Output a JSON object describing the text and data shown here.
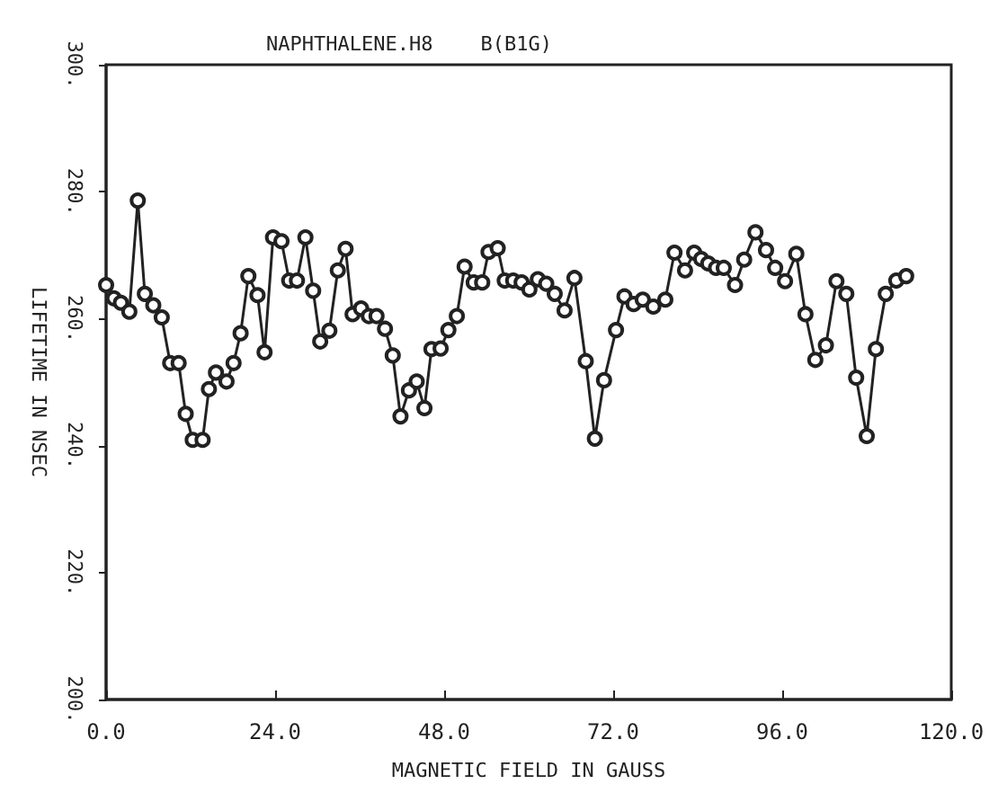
{
  "chart_data": {
    "type": "line",
    "title": "NAPHTHALENE.H8    B(B1G)",
    "xlabel": "MAGNETIC FIELD IN GAUSS",
    "ylabel": "LIFETIME IN NSEC",
    "xlim": [
      0,
      120
    ],
    "xticks": [
      {
        "value": 0,
        "label": "0.0"
      },
      {
        "value": 24,
        "label": "24.0"
      },
      {
        "value": 48,
        "label": "48.0"
      },
      {
        "value": 72,
        "label": "72.0"
      },
      {
        "value": 96,
        "label": "96.0"
      },
      {
        "value": 120,
        "label": "120.0"
      }
    ],
    "ylim": [
      200,
      300
    ],
    "yticks": [
      {
        "value": 200,
        "label": "200."
      },
      {
        "value": 220,
        "label": "220."
      },
      {
        "value": 240,
        "label": "240."
      },
      {
        "value": 260,
        "label": "260."
      },
      {
        "value": 280,
        "label": "280."
      },
      {
        "value": 300,
        "label": "300."
      }
    ],
    "grid": false,
    "marker": "circle",
    "line_style": "solid",
    "series": [
      {
        "color": "#222222",
        "x": [
          0,
          1.1,
          2.1,
          3.3,
          4.5,
          5.5,
          6.7,
          7.9,
          9.1,
          10.3,
          11.3,
          12.3,
          13.7,
          14.6,
          15.6,
          17.1,
          18.1,
          19.1,
          20.2,
          21.5,
          22.5,
          23.7,
          24.9,
          26.0,
          27.1,
          28.3,
          29.4,
          30.4,
          31.7,
          32.9,
          34.0,
          35.0,
          36.2,
          37.3,
          38.4,
          39.6,
          40.7,
          41.8,
          43.0,
          44.1,
          45.2,
          46.2,
          47.5,
          48.6,
          49.8,
          50.9,
          52.2,
          53.4,
          54.3,
          55.6,
          56.6,
          57.8,
          59.0,
          60.1,
          61.3,
          62.5,
          63.7,
          65.1,
          66.5,
          68.1,
          69.4,
          70.7,
          72.4,
          73.6,
          74.9,
          76.2,
          77.7,
          79.4,
          80.7,
          82.2,
          83.5,
          84.5,
          85.5,
          86.6,
          87.7,
          89.3,
          90.6,
          92.2,
          93.7,
          95.0,
          96.4,
          98.0,
          99.3,
          100.7,
          102.2,
          103.7,
          105.1,
          106.5,
          108.0,
          109.3,
          110.7,
          112.2,
          113.6
        ],
        "values": [
          265.3,
          263.2,
          262.5,
          261.1,
          278.6,
          263.9,
          262.1,
          260.2,
          253.0,
          253.0,
          245.0,
          240.9,
          240.9,
          248.9,
          251.5,
          250.1,
          253.0,
          257.7,
          266.7,
          263.7,
          254.7,
          272.8,
          272.2,
          266.0,
          266.0,
          272.8,
          264.4,
          256.4,
          258.1,
          267.6,
          271.0,
          260.7,
          261.6,
          260.4,
          260.4,
          258.4,
          254.2,
          244.6,
          248.7,
          250.1,
          245.9,
          255.2,
          255.3,
          258.2,
          260.4,
          268.2,
          265.7,
          265.7,
          270.5,
          271.1,
          266.0,
          266.0,
          265.7,
          264.6,
          266.2,
          265.5,
          263.9,
          261.3,
          266.4,
          253.3,
          241.1,
          250.3,
          258.2,
          263.5,
          262.3,
          263.0,
          261.9,
          263.0,
          270.4,
          267.6,
          270.4,
          269.4,
          268.7,
          268.0,
          268.0,
          265.3,
          269.3,
          273.6,
          270.8,
          268.0,
          265.9,
          270.2,
          260.7,
          253.5,
          255.8,
          265.9,
          263.9,
          250.7,
          241.5,
          255.2,
          263.9,
          266.0,
          266.7
        ]
      }
    ]
  }
}
